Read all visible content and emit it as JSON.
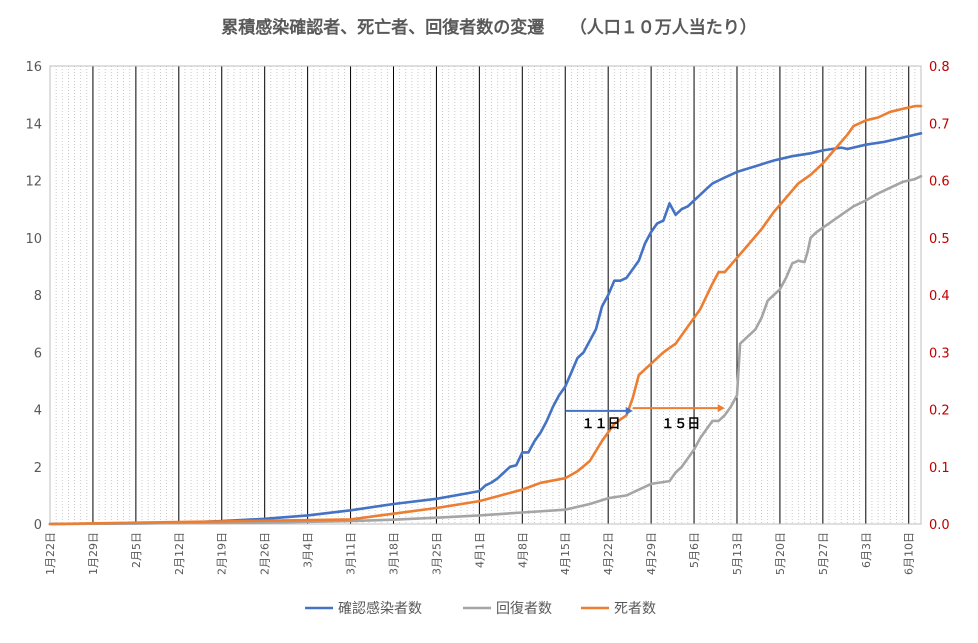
{
  "chart_data": {
    "type": "line",
    "title": "累積感染確認者、死亡者、回復者数の変遷　　（人口１０万人当たり）",
    "xlabel": "",
    "ylabel": "",
    "y_left_range": [
      0,
      16
    ],
    "y_right_range": [
      0,
      0.8
    ],
    "y_left_ticks": [
      "0",
      "2",
      "4",
      "6",
      "8",
      "10",
      "12",
      "14",
      "16"
    ],
    "y_right_ticks": [
      "0.0",
      "0.1",
      "0.2",
      "0.3",
      "0.4",
      "0.5",
      "0.6",
      "0.7",
      "0.8"
    ],
    "x_ticks": [
      "1月22日",
      "1月29日",
      "2月5日",
      "2月12日",
      "2月19日",
      "2月26日",
      "3月4日",
      "3月11日",
      "3月18日",
      "3月25日",
      "4月1日",
      "4月8日",
      "4月15日",
      "4月22日",
      "4月29日",
      "5月6日",
      "5月13日",
      "5月20日",
      "5月27日",
      "6月3日",
      "6月10日"
    ],
    "day_count": 142,
    "grid": "major vertical weekly lines, minor dotted daily lines",
    "legend_position": "bottom",
    "series": [
      {
        "name": "確認感染者数",
        "axis": "left",
        "color": "#4472c4",
        "points": [
          [
            0,
            0
          ],
          [
            14,
            0.02
          ],
          [
            21,
            0.04
          ],
          [
            28,
            0.1
          ],
          [
            35,
            0.18
          ],
          [
            42,
            0.3
          ],
          [
            49,
            0.48
          ],
          [
            56,
            0.7
          ],
          [
            63,
            0.88
          ],
          [
            70,
            1.15
          ],
          [
            71,
            1.35
          ],
          [
            72,
            1.45
          ],
          [
            73,
            1.6
          ],
          [
            74,
            1.8
          ],
          [
            75,
            2.0
          ],
          [
            76,
            2.05
          ],
          [
            77,
            2.5
          ],
          [
            78,
            2.5
          ],
          [
            79,
            2.9
          ],
          [
            80,
            3.2
          ],
          [
            81,
            3.6
          ],
          [
            82,
            4.1
          ],
          [
            83,
            4.5
          ],
          [
            84,
            4.8
          ],
          [
            85,
            5.3
          ],
          [
            86,
            5.8
          ],
          [
            87,
            6.0
          ],
          [
            88,
            6.4
          ],
          [
            89,
            6.8
          ],
          [
            90,
            7.6
          ],
          [
            91,
            8.0
          ],
          [
            92,
            8.5
          ],
          [
            93,
            8.5
          ],
          [
            94,
            8.6
          ],
          [
            95,
            8.9
          ],
          [
            96,
            9.2
          ],
          [
            97,
            9.8
          ],
          [
            98,
            10.2
          ],
          [
            99,
            10.5
          ],
          [
            100,
            10.6
          ],
          [
            101,
            11.2
          ],
          [
            102,
            10.8
          ],
          [
            103,
            11.0
          ],
          [
            104,
            11.1
          ],
          [
            105,
            11.3
          ],
          [
            106,
            11.5
          ],
          [
            107,
            11.7
          ],
          [
            108,
            11.9
          ],
          [
            109,
            12.0
          ],
          [
            110,
            12.1
          ],
          [
            112,
            12.3
          ],
          [
            115,
            12.5
          ],
          [
            118,
            12.7
          ],
          [
            121,
            12.85
          ],
          [
            124,
            12.95
          ],
          [
            126,
            13.05
          ],
          [
            129,
            13.15
          ],
          [
            130,
            13.1
          ],
          [
            133,
            13.25
          ],
          [
            136,
            13.35
          ],
          [
            139,
            13.5
          ],
          [
            142,
            13.65
          ]
        ]
      },
      {
        "name": "回復者数",
        "axis": "left",
        "color": "#a5a5a5",
        "points": [
          [
            0,
            0
          ],
          [
            35,
            0.05
          ],
          [
            49,
            0.1
          ],
          [
            56,
            0.15
          ],
          [
            63,
            0.22
          ],
          [
            70,
            0.3
          ],
          [
            77,
            0.4
          ],
          [
            84,
            0.5
          ],
          [
            88,
            0.7
          ],
          [
            91,
            0.9
          ],
          [
            94,
            1.0
          ],
          [
            95,
            1.1
          ],
          [
            98,
            1.4
          ],
          [
            101,
            1.5
          ],
          [
            102,
            1.8
          ],
          [
            103,
            2.0
          ],
          [
            104,
            2.3
          ],
          [
            105,
            2.6
          ],
          [
            106,
            3.0
          ],
          [
            107,
            3.3
          ],
          [
            108,
            3.6
          ],
          [
            109,
            3.6
          ],
          [
            110,
            3.8
          ],
          [
            111,
            4.1
          ],
          [
            112,
            4.5
          ],
          [
            112.5,
            6.3
          ],
          [
            114,
            6.6
          ],
          [
            115,
            6.8
          ],
          [
            116,
            7.2
          ],
          [
            117,
            7.8
          ],
          [
            118,
            8.0
          ],
          [
            119,
            8.2
          ],
          [
            120,
            8.6
          ],
          [
            121,
            9.1
          ],
          [
            122,
            9.2
          ],
          [
            123,
            9.15
          ],
          [
            123.5,
            9.5
          ],
          [
            124,
            10.0
          ],
          [
            125,
            10.2
          ],
          [
            127,
            10.5
          ],
          [
            129,
            10.8
          ],
          [
            131,
            11.1
          ],
          [
            133,
            11.3
          ],
          [
            135,
            11.55
          ],
          [
            137,
            11.75
          ],
          [
            139,
            11.95
          ],
          [
            141,
            12.05
          ],
          [
            142,
            12.15
          ]
        ]
      },
      {
        "name": "死者数",
        "axis": "right",
        "color": "#ed7d31",
        "points": [
          [
            0,
            0
          ],
          [
            49,
            0.008
          ],
          [
            56,
            0.018
          ],
          [
            63,
            0.028
          ],
          [
            70,
            0.04
          ],
          [
            77,
            0.06
          ],
          [
            80,
            0.072
          ],
          [
            84,
            0.08
          ],
          [
            86,
            0.092
          ],
          [
            88,
            0.11
          ],
          [
            90,
            0.145
          ],
          [
            92,
            0.175
          ],
          [
            94,
            0.19
          ],
          [
            95,
            0.22
          ],
          [
            96,
            0.26
          ],
          [
            98,
            0.28
          ],
          [
            100,
            0.3
          ],
          [
            102,
            0.315
          ],
          [
            104,
            0.345
          ],
          [
            106,
            0.375
          ],
          [
            108,
            0.42
          ],
          [
            109,
            0.44
          ],
          [
            110,
            0.44
          ],
          [
            112,
            0.465
          ],
          [
            114,
            0.49
          ],
          [
            116,
            0.515
          ],
          [
            118,
            0.545
          ],
          [
            120,
            0.57
          ],
          [
            122,
            0.595
          ],
          [
            124,
            0.61
          ],
          [
            126,
            0.63
          ],
          [
            128,
            0.655
          ],
          [
            130,
            0.68
          ],
          [
            131,
            0.695
          ],
          [
            133,
            0.705
          ],
          [
            135,
            0.71
          ],
          [
            137,
            0.72
          ],
          [
            139,
            0.725
          ],
          [
            141,
            0.73
          ],
          [
            142,
            0.73
          ]
        ]
      }
    ],
    "annotations": [
      {
        "label": "１１日",
        "from_day": 84,
        "to_day": 95,
        "y": 3.95,
        "color": "#4472c4"
      },
      {
        "label": "１５日",
        "from_day": 95,
        "to_day": 110,
        "y": 4.05,
        "color": "#ed7d31"
      }
    ]
  }
}
